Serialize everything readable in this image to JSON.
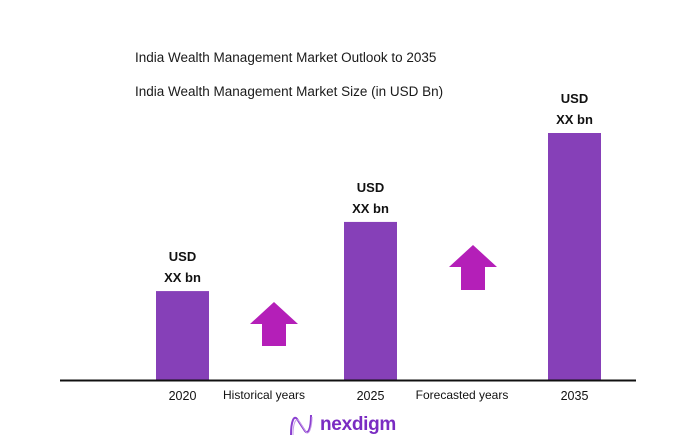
{
  "chart_data": {
    "type": "bar",
    "title": "India Wealth Management Market Outlook to 2035",
    "subtitle": "India Wealth Management Market Size (in USD Bn)",
    "categories": [
      "2020",
      "2025",
      "2035"
    ],
    "relative_values": [
      0.36,
      0.64,
      1.0
    ],
    "data_labels": [
      {
        "line1": "USD",
        "line2": "XX bn"
      },
      {
        "line1": "USD",
        "line2": "XX bn"
      },
      {
        "line1": "USD",
        "line2": "XX bn"
      }
    ],
    "period_labels": [
      "Historical years",
      "Forecasted years"
    ],
    "growth_arrows": 2,
    "grid": false,
    "legend": "none",
    "colors": {
      "bar": "#8640b8",
      "arrow": "#b41fb8",
      "axis": "#111111"
    }
  },
  "brand": {
    "name": "nexdigm"
  }
}
